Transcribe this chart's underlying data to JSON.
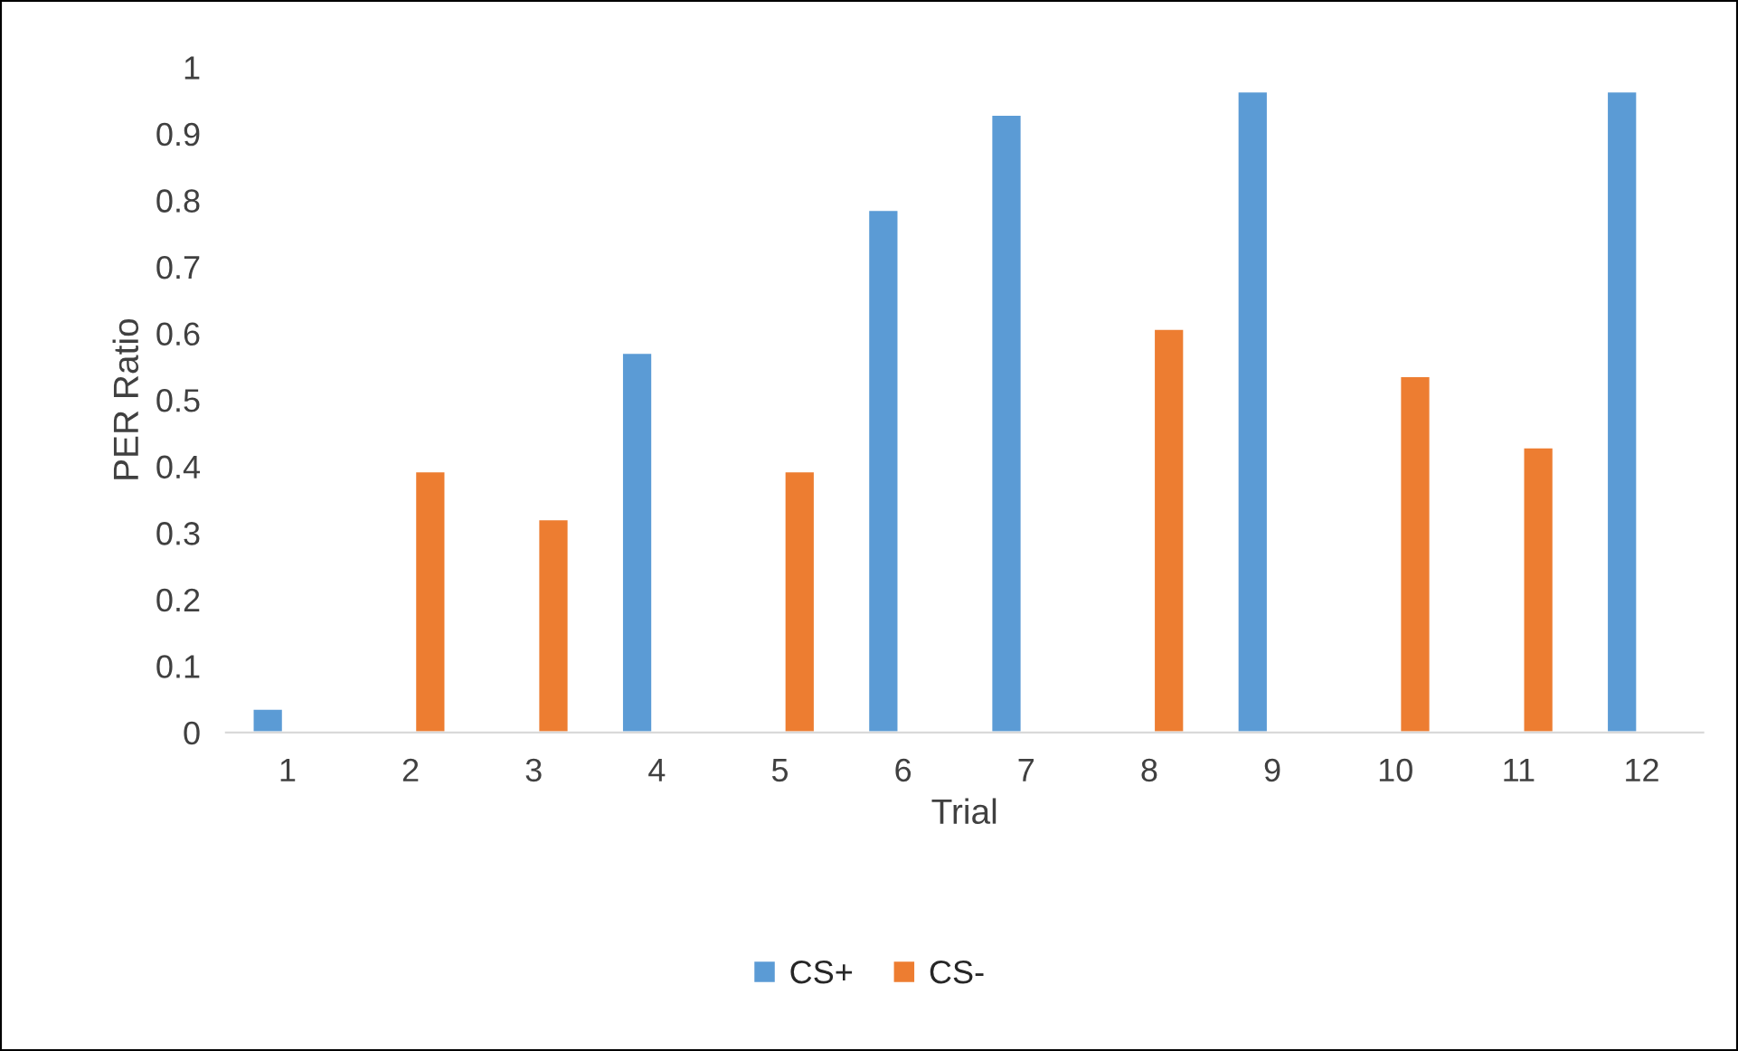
{
  "chart_data": {
    "type": "bar",
    "xlabel": "Trial",
    "ylabel": "PER Ratio",
    "categories": [
      "1",
      "2",
      "3",
      "4",
      "5",
      "6",
      "7",
      "8",
      "9",
      "10",
      "11",
      "12"
    ],
    "series": [
      {
        "name": "CS+",
        "color": "#5b9bd5",
        "values": [
          0.036,
          null,
          null,
          0.571,
          null,
          0.786,
          0.929,
          null,
          0.964,
          null,
          null,
          0.964
        ]
      },
      {
        "name": "CS-",
        "color": "#ed7d31",
        "values": [
          null,
          0.393,
          0.321,
          null,
          0.393,
          null,
          null,
          0.607,
          null,
          0.536,
          0.429,
          null
        ]
      }
    ],
    "ylim": [
      0,
      1
    ],
    "yticks": [
      0,
      0.1,
      0.2,
      0.3,
      0.4,
      0.5,
      0.6,
      0.7,
      0.8,
      0.9,
      1
    ],
    "grid": false,
    "legend": "bottom"
  }
}
